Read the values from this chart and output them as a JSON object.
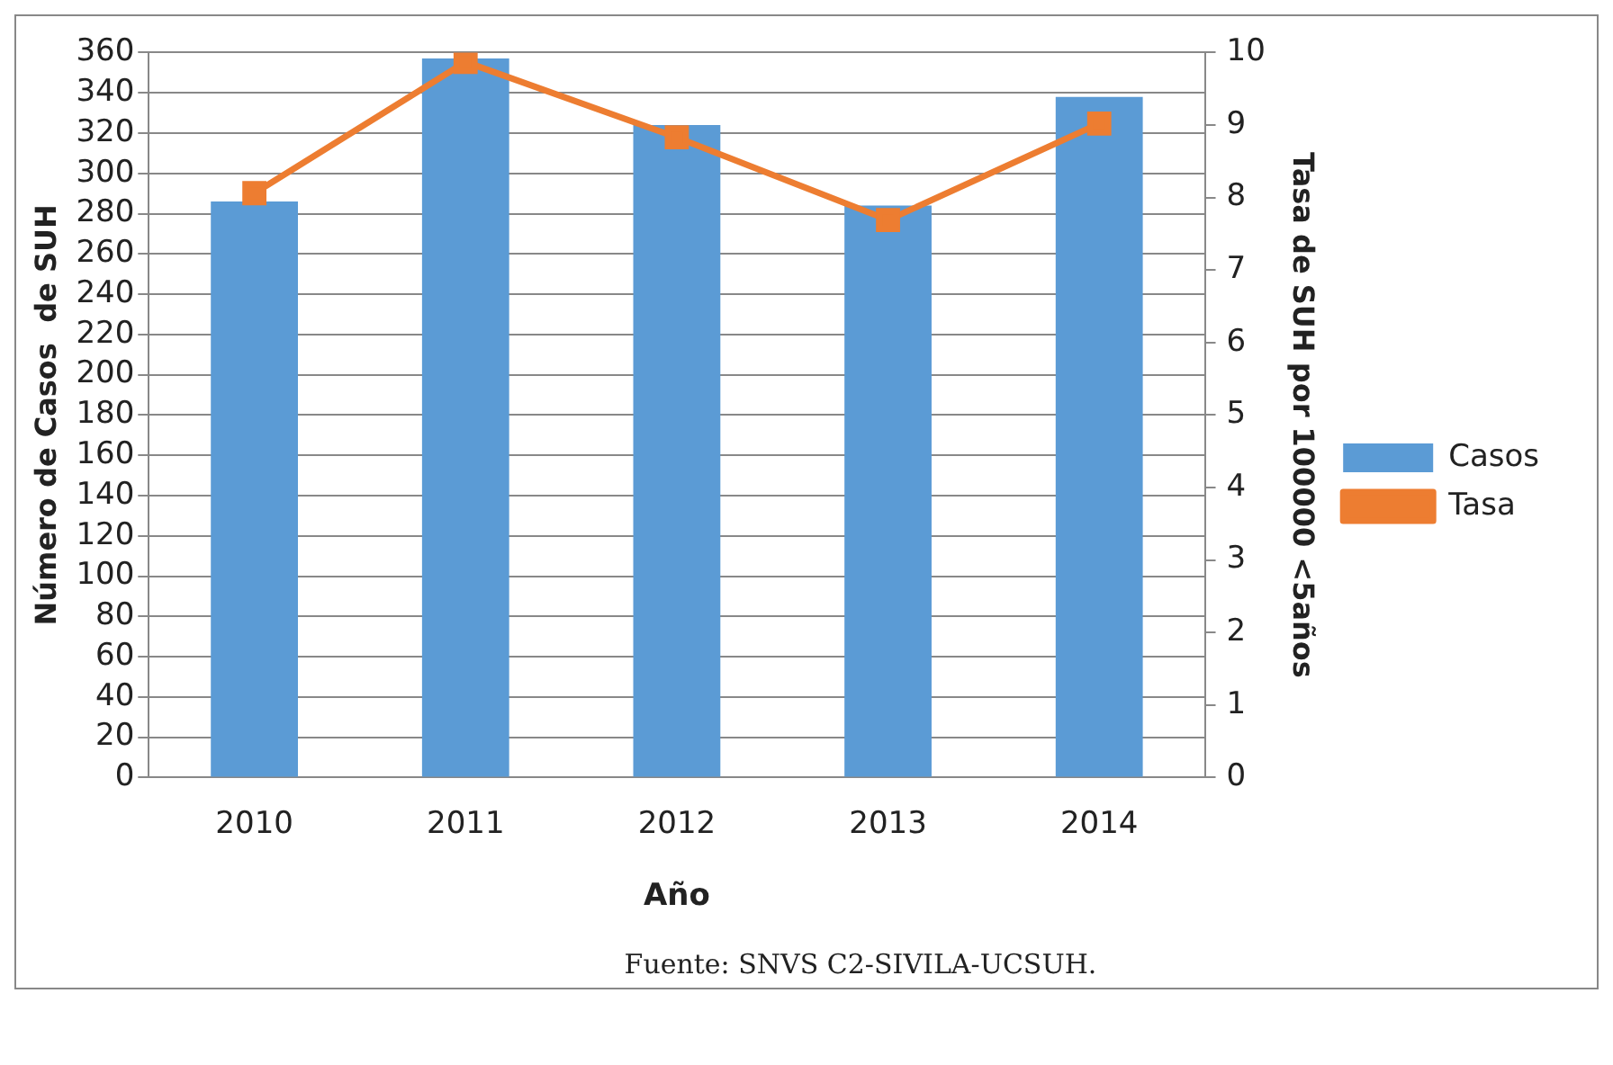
{
  "chart_data": {
    "type": "bar",
    "categories": [
      "2010",
      "2011",
      "2012",
      "2013",
      "2014"
    ],
    "xlabel": "Año",
    "ylabel": "Número de Casos  de SUH",
    "y2label": "Tasa de SUH por 100000 <5años",
    "series": [
      {
        "name": "Casos",
        "color": "#5b9bd5",
        "values": [
          286,
          357,
          324,
          284,
          338
        ]
      },
      {
        "name": "Tasa",
        "type": "line",
        "axis": "y2",
        "color": "#ed7d31",
        "marker": "square",
        "values": [
          8.06,
          9.87,
          8.83,
          7.69,
          9.02
        ]
      }
    ],
    "ylim": [
      0,
      360
    ],
    "yticks": [
      0,
      20,
      40,
      60,
      80,
      100,
      120,
      140,
      160,
      180,
      200,
      220,
      240,
      260,
      280,
      300,
      320,
      340,
      360
    ],
    "y2lim": [
      0,
      10
    ],
    "y2ticks": [
      0,
      1,
      2,
      3,
      4,
      5,
      6,
      7,
      8,
      9,
      10
    ],
    "grid": "y",
    "legend": "right",
    "annotations": [
      "Fuente: SNVS C2-SIVILA-UCSUH."
    ]
  }
}
